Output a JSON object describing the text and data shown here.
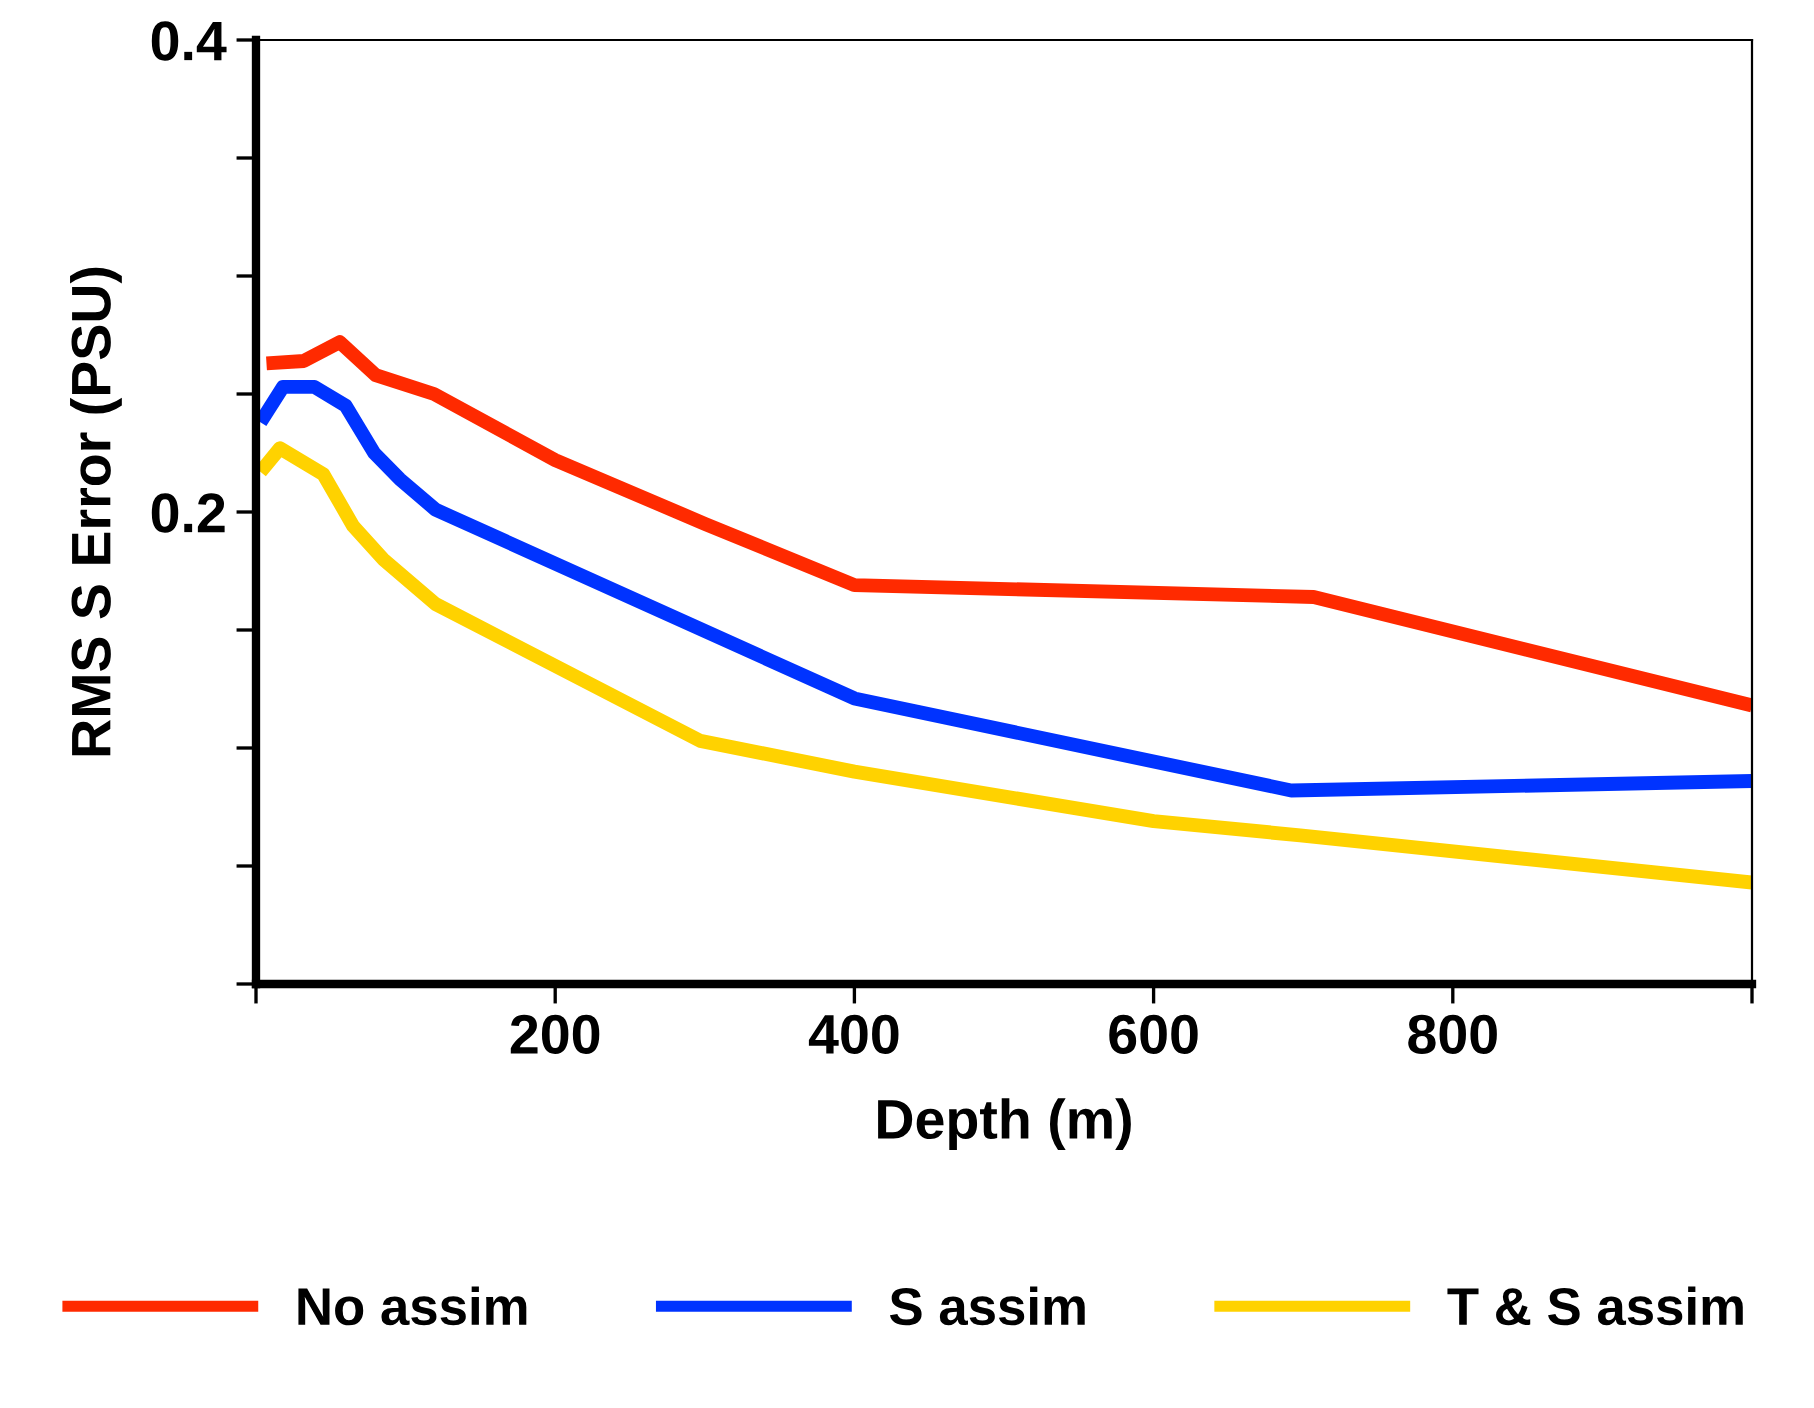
{
  "chart_data": {
    "type": "line",
    "xlabel": "Depth (m)",
    "ylabel": "RMS S Error (PSU)",
    "xlim": [
      0,
      1000
    ],
    "ylim": [
      0,
      0.4
    ],
    "xticks": [
      {
        "value": 0,
        "label": null
      },
      200,
      400,
      600,
      800,
      {
        "value": 1000,
        "label": null
      }
    ],
    "yticks": [
      {
        "value": 0,
        "label": null
      },
      {
        "value": 0.05,
        "label": null
      },
      {
        "value": 0.1,
        "label": null
      },
      {
        "value": 0.15,
        "label": null
      },
      0.2,
      {
        "value": 0.25,
        "label": null
      },
      {
        "value": 0.3,
        "label": null
      },
      {
        "value": 0.35,
        "label": null
      },
      0.4
    ],
    "grid": false,
    "legend": "bottom",
    "marker": "none",
    "line_style": "solid",
    "series": [
      {
        "name": "No assim",
        "color": "#ff2a00",
        "x": [
          7,
          32,
          56,
          80,
          119,
          200,
          300,
          400,
          707,
          1000
        ],
        "values": [
          0.263,
          0.264,
          0.272,
          0.258,
          0.25,
          0.222,
          0.195,
          0.169,
          0.164,
          0.118
        ]
      },
      {
        "name": "S assim",
        "color": "#0033ff",
        "x": [
          3,
          18,
          39,
          60,
          79,
          96,
          120,
          400,
          692,
          1000
        ],
        "values": [
          0.238,
          0.253,
          0.253,
          0.245,
          0.225,
          0.214,
          0.201,
          0.121,
          0.082,
          0.086
        ]
      },
      {
        "name": "T & S assim",
        "color": "#ffd200",
        "x": [
          3,
          16,
          45,
          65,
          85,
          120,
          297,
          400,
          600,
          698,
          1000
        ],
        "values": [
          0.217,
          0.227,
          0.216,
          0.194,
          0.18,
          0.161,
          0.103,
          0.09,
          0.069,
          0.063,
          0.043
        ]
      }
    ]
  }
}
